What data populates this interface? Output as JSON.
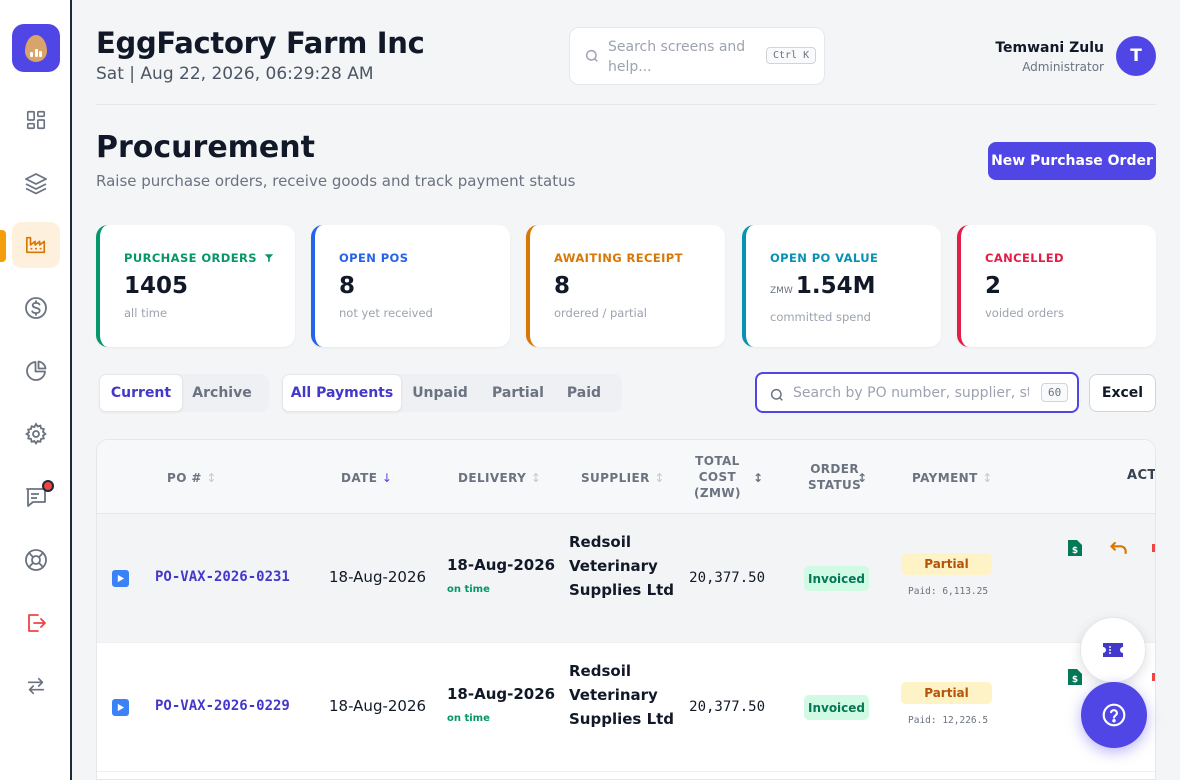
{
  "header": {
    "company": "EggFactory Farm Inc",
    "datetime": "Sat | Aug 22, 2026, 06:29:28 AM",
    "search_placeholder": "Search screens and help...",
    "search_shortcut": "Ctrl K",
    "user_name": "Temwani Zulu",
    "user_role": "Administrator",
    "avatar_initial": "T"
  },
  "sidebar": {
    "items": [
      {
        "icon": "dashboard-grid-icon"
      },
      {
        "icon": "layers-icon"
      },
      {
        "icon": "factory-icon",
        "active": true
      },
      {
        "icon": "dollar-circle-icon"
      },
      {
        "icon": "pie-chart-icon"
      },
      {
        "icon": "settings-gear-icon"
      },
      {
        "icon": "chat-message-icon",
        "notification": true
      },
      {
        "icon": "lifebuoy-icon"
      },
      {
        "icon": "logout-icon"
      },
      {
        "icon": "switch-arrows-icon"
      }
    ]
  },
  "page": {
    "title": "Procurement",
    "subtitle": "Raise purchase orders, receive goods and track payment status",
    "new_button": "New Purchase Order"
  },
  "stats": [
    {
      "label": "PURCHASE ORDERS",
      "value": "1405",
      "sub": "all time",
      "color": "#059669",
      "filter_icon": true
    },
    {
      "label": "OPEN POS",
      "value": "8",
      "sub": "not yet received",
      "color": "#2563eb"
    },
    {
      "label": "AWAITING RECEIPT",
      "value": "8",
      "sub": "ordered / partial",
      "color": "#d97706"
    },
    {
      "label": "OPEN PO VALUE",
      "currency": "ZMW",
      "value": "1.54M",
      "sub": "committed spend",
      "color": "#0891b2"
    },
    {
      "label": "CANCELLED",
      "value": "2",
      "sub": "voided orders",
      "color": "#e11d48"
    }
  ],
  "filters": {
    "scope": [
      "Current",
      "Archive"
    ],
    "scope_selected": "Current",
    "payment": [
      "All Payments",
      "Unpaid",
      "Partial",
      "Paid"
    ],
    "payment_selected": "All Payments",
    "search_placeholder": "Search by PO number, supplier, status",
    "result_count": "60",
    "excel_label": "Excel"
  },
  "table": {
    "columns": {
      "po": "PO #",
      "date": "DATE",
      "delivery": "DELIVERY",
      "supplier": "SUPPLIER",
      "cost_1": "TOTAL",
      "cost_2": "COST",
      "cost_3": "(ZMW)",
      "status_1": "ORDER",
      "status_2": "STATUS",
      "payment": "PAYMENT",
      "actions": "ACTIONS"
    },
    "rows": [
      {
        "po": "PO-VAX-2026-0231",
        "date": "18-Aug-2026",
        "delivery": "18-Aug-2026",
        "delivery_note": "on time",
        "supplier": "Redsoil Veterinary Supplies Ltd",
        "cost": "20,377.50",
        "status": "Invoiced",
        "payment": "Partial",
        "paid": "Paid: 6,113.25"
      },
      {
        "po": "PO-VAX-2026-0229",
        "date": "18-Aug-2026",
        "delivery": "18-Aug-2026",
        "delivery_note": "on time",
        "supplier": "Redsoil Veterinary Supplies Ltd",
        "cost": "20,377.50",
        "status": "Invoiced",
        "payment": "Partial",
        "paid": "Paid: 12,226.5"
      }
    ]
  },
  "colors": {
    "primary": "#4f46e5",
    "accent": "#f59e0b",
    "success": "#059669",
    "warning": "#b45309"
  }
}
